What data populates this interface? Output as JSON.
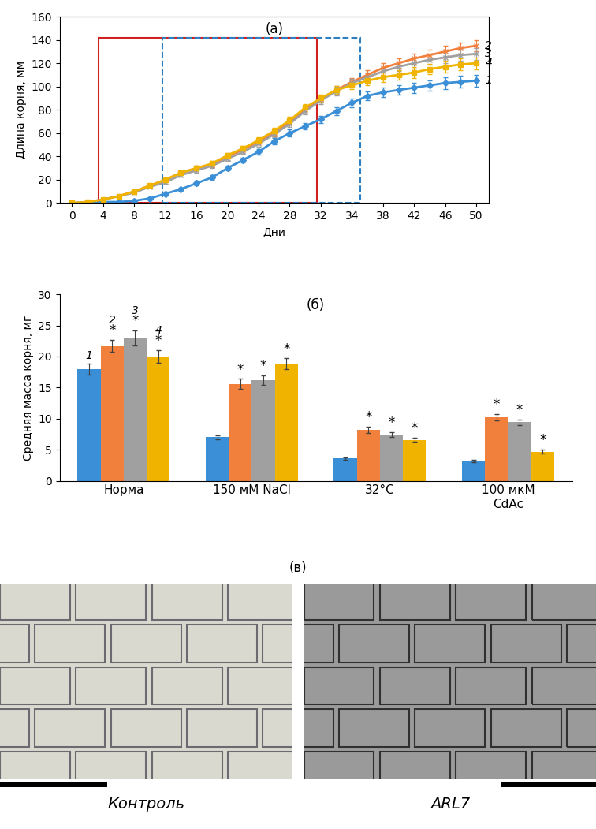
{
  "chart_data": [
    {
      "type": "line",
      "title": "(а)",
      "x_label": "Дни",
      "y_label": "Длина корня, мм",
      "categories": [
        "0",
        null,
        "4",
        null,
        "8",
        null,
        "12",
        null,
        "16",
        null,
        "20",
        null,
        "24",
        null,
        "28",
        null,
        "32",
        null,
        "34",
        null,
        "38",
        null,
        "42",
        null,
        "46",
        null,
        "50"
      ],
      "ylim": [
        0,
        160
      ],
      "yticks": [
        0,
        20,
        40,
        60,
        80,
        100,
        120,
        140,
        160
      ],
      "series": [
        {
          "name": "1",
          "color": "#3a8fd6",
          "marker": "diamond",
          "values": [
            0,
            0,
            1,
            1,
            2,
            4,
            8,
            12,
            17,
            22,
            30,
            37,
            44,
            53,
            60,
            66,
            72,
            79,
            86,
            92,
            95,
            97,
            99,
            101,
            103,
            104,
            105
          ],
          "errors": [
            0,
            0,
            0.5,
            0.5,
            1,
            1,
            1.5,
            1.5,
            2,
            2,
            2,
            2,
            2.5,
            2.5,
            3,
            3,
            3,
            3.5,
            3.5,
            4,
            4,
            4,
            4.5,
            4.5,
            5,
            5,
            5
          ]
        },
        {
          "name": "2",
          "color": "#f0803c",
          "marker": "x",
          "values": [
            0,
            1,
            3,
            6,
            10,
            15,
            20,
            26,
            30,
            33,
            40,
            46,
            53,
            60,
            70,
            80,
            89,
            97,
            104,
            110,
            116,
            120,
            124,
            127,
            130,
            133,
            135
          ],
          "errors": [
            0,
            0,
            0.5,
            0.5,
            1,
            1,
            1.5,
            1.5,
            2,
            2,
            2,
            2,
            2.5,
            2.5,
            3,
            3,
            3,
            3.5,
            3.5,
            4,
            4,
            4,
            4.5,
            4.5,
            5,
            5,
            5
          ]
        },
        {
          "name": "3",
          "color": "#a0a0a0",
          "marker": "x",
          "values": [
            0,
            1,
            3,
            6,
            9,
            14,
            18,
            24,
            28,
            32,
            38,
            44,
            51,
            59,
            68,
            79,
            88,
            96,
            103,
            108,
            113,
            117,
            120,
            123,
            125,
            127,
            128
          ],
          "errors": [
            0,
            0,
            0.5,
            0.5,
            1,
            1,
            1.5,
            1.5,
            2,
            2,
            2,
            2,
            2.5,
            2.5,
            3,
            3,
            3,
            3.5,
            3.5,
            4,
            4,
            4,
            4.5,
            4.5,
            5,
            5,
            5
          ]
        },
        {
          "name": "4",
          "color": "#f0b400",
          "marker": "square",
          "values": [
            0,
            1,
            3,
            6,
            10,
            15,
            20,
            26,
            30,
            34,
            41,
            47,
            54,
            62,
            71,
            82,
            90,
            97,
            101,
            105,
            108,
            110,
            112,
            115,
            117,
            119,
            120
          ],
          "errors": [
            0,
            0,
            0.5,
            0.5,
            1,
            1,
            1.5,
            1.5,
            2,
            2,
            2,
            2,
            2.5,
            2.5,
            3,
            3,
            3,
            3.5,
            3.5,
            4,
            4,
            4,
            4.5,
            4.5,
            5,
            5,
            5
          ]
        }
      ]
    },
    {
      "type": "bar",
      "title": "(б)",
      "y_label": "Средняя масса корня, мг",
      "categories": [
        "Норма",
        "150 мМ NaCl",
        "32°C",
        "100 мкМ\nCdAc"
      ],
      "ylim": [
        0,
        30
      ],
      "yticks": [
        0,
        5,
        10,
        15,
        20,
        25,
        30
      ],
      "significance_mark": "*",
      "series": [
        {
          "name": "1",
          "color": "#3a8fd6",
          "values": [
            18,
            7,
            3.6,
            3.2
          ],
          "errors": [
            0.9,
            0.3,
            0.2,
            0.15
          ],
          "significance": [
            false,
            false,
            false,
            false
          ]
        },
        {
          "name": "2",
          "color": "#f0803c",
          "values": [
            21.7,
            15.6,
            8.2,
            10.2
          ],
          "errors": [
            1.0,
            0.8,
            0.5,
            0.5
          ],
          "significance": [
            true,
            true,
            true,
            true
          ]
        },
        {
          "name": "3",
          "color": "#a0a0a0",
          "values": [
            23,
            16.2,
            7.4,
            9.4
          ],
          "errors": [
            1.2,
            0.8,
            0.4,
            0.5
          ],
          "significance": [
            true,
            true,
            true,
            true
          ]
        },
        {
          "name": "4",
          "color": "#f0b400",
          "values": [
            20,
            18.8,
            6.6,
            4.7
          ],
          "errors": [
            1.0,
            0.9,
            0.3,
            0.3
          ],
          "significance": [
            true,
            true,
            true,
            true
          ]
        }
      ]
    }
  ],
  "panel_c": {
    "title": "(в)",
    "images": [
      {
        "caption": "Контроль"
      },
      {
        "caption": "ARL7"
      }
    ]
  }
}
